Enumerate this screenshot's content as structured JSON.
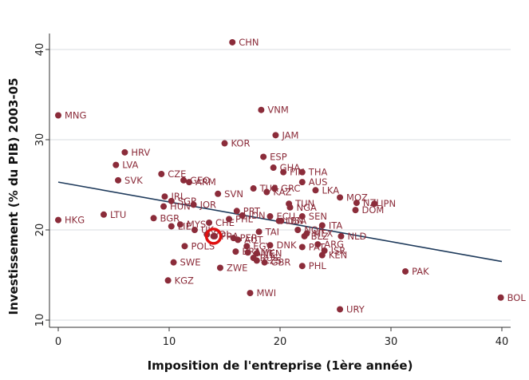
{
  "chart_data": {
    "type": "scatter",
    "xlabel": "Imposition de l'entreprise (1ère année)",
    "ylabel": "Investissement (% du PIB) 2003-05",
    "xlim": [
      0,
      40
    ],
    "ylim": [
      10,
      42
    ],
    "xticks": [
      "0",
      "10",
      "20",
      "30",
      "40"
    ],
    "yticks": [
      "10",
      "20",
      "30",
      "40"
    ],
    "xtick_values": [
      0,
      10,
      20,
      30,
      40
    ],
    "ytick_values": [
      10,
      20,
      30,
      40
    ],
    "grid": "horizontal",
    "point_color": "#8b2c3a",
    "line_color": "#1f3b5c",
    "highlight_color": "#e01010",
    "trend_line": {
      "x": [
        0,
        40
      ],
      "y": [
        25.3,
        16.5
      ]
    },
    "highlight": {
      "x": 14.0,
      "y": 19.3
    },
    "points": [
      {
        "label": "CHN",
        "x": 15.7,
        "y": 40.8
      },
      {
        "label": "MNG",
        "x": 0.0,
        "y": 32.7
      },
      {
        "label": "VNM",
        "x": 18.3,
        "y": 33.3
      },
      {
        "label": "JAM",
        "x": 19.6,
        "y": 30.5
      },
      {
        "label": "KOR",
        "x": 15.0,
        "y": 29.6
      },
      {
        "label": "HRV",
        "x": 6.0,
        "y": 28.6
      },
      {
        "label": "ESP",
        "x": 18.5,
        "y": 28.1
      },
      {
        "label": "LVA",
        "x": 5.2,
        "y": 27.2
      },
      {
        "label": "GHA",
        "x": 19.4,
        "y": 26.9
      },
      {
        "label": "FIN",
        "x": 20.3,
        "y": 26.4
      },
      {
        "label": "THA",
        "x": 22.0,
        "y": 26.4
      },
      {
        "label": "CZE",
        "x": 9.3,
        "y": 26.2
      },
      {
        "label": "SVK",
        "x": 5.4,
        "y": 25.5
      },
      {
        "label": "GEO",
        "x": 11.3,
        "y": 25.5
      },
      {
        "label": "ARM",
        "x": 11.8,
        "y": 25.3
      },
      {
        "label": "AUS",
        "x": 22.0,
        "y": 25.3
      },
      {
        "label": "TUR",
        "x": 17.6,
        "y": 24.6
      },
      {
        "label": "GRC",
        "x": 19.5,
        "y": 24.6
      },
      {
        "label": "LKA",
        "x": 23.2,
        "y": 24.4
      },
      {
        "label": "KAZ",
        "x": 18.8,
        "y": 24.2
      },
      {
        "label": "SVN",
        "x": 14.4,
        "y": 24.0
      },
      {
        "label": "IRL",
        "x": 9.6,
        "y": 23.7
      },
      {
        "label": "MOZ",
        "x": 25.4,
        "y": 23.6
      },
      {
        "label": "SGP",
        "x": 10.2,
        "y": 23.2
      },
      {
        "label": "NZL",
        "x": 26.9,
        "y": 23.0
      },
      {
        "label": "JPN",
        "x": 28.5,
        "y": 22.9
      },
      {
        "label": "TUN",
        "x": 20.8,
        "y": 22.9
      },
      {
        "label": "JOR",
        "x": 12.2,
        "y": 22.8
      },
      {
        "label": "HUN",
        "x": 9.5,
        "y": 22.6
      },
      {
        "label": "NGA",
        "x": 20.9,
        "y": 22.5
      },
      {
        "label": "DOM",
        "x": 26.8,
        "y": 22.2
      },
      {
        "label": "PRT",
        "x": 16.1,
        "y": 22.1
      },
      {
        "label": "IDN",
        "x": 16.6,
        "y": 21.6
      },
      {
        "label": "HKG",
        "x": 0.0,
        "y": 21.1
      },
      {
        "label": "LTU",
        "x": 4.1,
        "y": 21.7
      },
      {
        "label": "ECU",
        "x": 19.1,
        "y": 21.5
      },
      {
        "label": "SEN",
        "x": 22.0,
        "y": 21.5
      },
      {
        "label": "BGR",
        "x": 8.6,
        "y": 21.3
      },
      {
        "label": "PHL",
        "x": 15.4,
        "y": 21.2
      },
      {
        "label": "USA",
        "x": 20.1,
        "y": 21.0
      },
      {
        "label": "CHE",
        "x": 13.6,
        "y": 20.8
      },
      {
        "label": "LBN",
        "x": 19.9,
        "y": 21.0
      },
      {
        "label": "MYS",
        "x": 11.0,
        "y": 20.6
      },
      {
        "label": "ITA",
        "x": 23.8,
        "y": 20.5
      },
      {
        "label": "LIE",
        "x": 10.2,
        "y": 20.4
      },
      {
        "label": "UK",
        "x": 12.3,
        "y": 20.0
      },
      {
        "label": "NOR",
        "x": 21.6,
        "y": 20.0
      },
      {
        "label": "TAI",
        "x": 18.1,
        "y": 19.8
      },
      {
        "label": "POL",
        "x": 13.4,
        "y": 19.5
      },
      {
        "label": "MEX",
        "x": 22.4,
        "y": 19.6
      },
      {
        "label": "NLD",
        "x": 25.5,
        "y": 19.3
      },
      {
        "label": "FRA",
        "x": 14.1,
        "y": 19.3
      },
      {
        "label": "BLZ",
        "x": 22.2,
        "y": 19.3
      },
      {
        "label": "PER",
        "x": 15.8,
        "y": 19.1
      },
      {
        "label": "AUT",
        "x": 16.2,
        "y": 18.9
      },
      {
        "label": "ARG",
        "x": 23.4,
        "y": 18.4
      },
      {
        "label": "DNK",
        "x": 19.1,
        "y": 18.3
      },
      {
        "label": "EGY",
        "x": 17.0,
        "y": 18.2
      },
      {
        "label": "POLS",
        "x": 11.4,
        "y": 18.2
      },
      {
        "label": "PAT",
        "x": 22.0,
        "y": 18.1
      },
      {
        "label": "ISR",
        "x": 24.0,
        "y": 17.7
      },
      {
        "label": "BRA",
        "x": 16.0,
        "y": 17.6
      },
      {
        "label": "AMK",
        "x": 17.1,
        "y": 17.5
      },
      {
        "label": "VEN",
        "x": 17.9,
        "y": 17.4
      },
      {
        "label": "KEN",
        "x": 23.8,
        "y": 17.2
      },
      {
        "label": "RUS",
        "x": 17.6,
        "y": 16.9
      },
      {
        "label": "CZS",
        "x": 17.9,
        "y": 16.6
      },
      {
        "label": "GBR",
        "x": 18.6,
        "y": 16.4
      },
      {
        "label": "PHL",
        "x": 22.0,
        "y": 16.0
      },
      {
        "label": "SWE",
        "x": 10.4,
        "y": 16.4
      },
      {
        "label": "ZWE",
        "x": 14.6,
        "y": 15.8
      },
      {
        "label": "PAK",
        "x": 31.3,
        "y": 15.4
      },
      {
        "label": "KGZ",
        "x": 9.9,
        "y": 14.4
      },
      {
        "label": "MWI",
        "x": 17.3,
        "y": 13.0
      },
      {
        "label": "BOL",
        "x": 39.9,
        "y": 12.5
      },
      {
        "label": "URY",
        "x": 25.4,
        "y": 11.2
      }
    ]
  }
}
